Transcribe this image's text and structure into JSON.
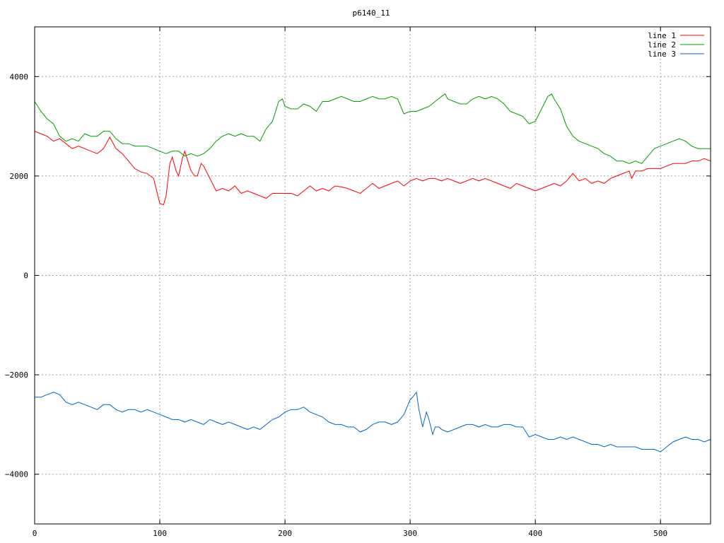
{
  "chart_data": {
    "type": "line",
    "title": "p6140_11",
    "xlabel": "",
    "ylabel": "",
    "xlim": [
      0,
      540
    ],
    "ylim": [
      -5000,
      5000
    ],
    "xticks": [
      0,
      100,
      200,
      300,
      400,
      500
    ],
    "yticks": [
      -4000,
      -2000,
      0,
      2000,
      4000
    ],
    "grid": true,
    "legend_position": "top-right",
    "series": [
      {
        "name": "line 1",
        "color": "#ff0000",
        "x": [
          0,
          5,
          10,
          15,
          20,
          25,
          30,
          35,
          40,
          45,
          50,
          55,
          60,
          65,
          70,
          75,
          80,
          85,
          90,
          95,
          98,
          100,
          103,
          105,
          108,
          110,
          113,
          115,
          118,
          120,
          123,
          125,
          128,
          130,
          133,
          135,
          138,
          140,
          143,
          145,
          150,
          155,
          160,
          165,
          170,
          175,
          180,
          185,
          190,
          195,
          200,
          205,
          210,
          215,
          220,
          225,
          230,
          235,
          240,
          245,
          250,
          255,
          260,
          265,
          270,
          275,
          280,
          285,
          290,
          295,
          300,
          305,
          310,
          315,
          320,
          325,
          330,
          335,
          340,
          345,
          350,
          355,
          360,
          365,
          370,
          375,
          380,
          385,
          390,
          395,
          400,
          405,
          410,
          415,
          420,
          425,
          430,
          435,
          440,
          445,
          450,
          455,
          460,
          465,
          470,
          475,
          477,
          480,
          485,
          490,
          495,
          500,
          505,
          510,
          515,
          520,
          525,
          530,
          535,
          540
        ],
        "y": [
          2900,
          2850,
          2800,
          2700,
          2750,
          2650,
          2550,
          2600,
          2550,
          2500,
          2450,
          2550,
          2780,
          2550,
          2450,
          2300,
          2150,
          2080,
          2050,
          1950,
          1650,
          1450,
          1420,
          1600,
          2250,
          2380,
          2100,
          2000,
          2350,
          2500,
          2250,
          2100,
          2000,
          2000,
          2250,
          2200,
          2050,
          1950,
          1800,
          1700,
          1750,
          1700,
          1800,
          1650,
          1700,
          1650,
          1600,
          1550,
          1650,
          1650,
          1650,
          1650,
          1600,
          1700,
          1800,
          1700,
          1750,
          1700,
          1800,
          1780,
          1750,
          1700,
          1650,
          1750,
          1850,
          1750,
          1800,
          1850,
          1900,
          1800,
          1900,
          1950,
          1900,
          1950,
          1950,
          1900,
          1950,
          1900,
          1850,
          1900,
          1950,
          1900,
          1950,
          1900,
          1850,
          1800,
          1750,
          1850,
          1800,
          1750,
          1700,
          1750,
          1800,
          1850,
          1800,
          1900,
          2050,
          1900,
          1950,
          1850,
          1900,
          1850,
          1950,
          2000,
          2050,
          2100,
          1950,
          2100,
          2100,
          2150,
          2150,
          2150,
          2200,
          2250,
          2250,
          2250,
          2300,
          2300,
          2350,
          2300
        ]
      },
      {
        "name": "line 2",
        "color": "#00a000",
        "x": [
          0,
          5,
          10,
          15,
          20,
          25,
          30,
          35,
          40,
          45,
          50,
          55,
          60,
          65,
          70,
          75,
          80,
          85,
          90,
          95,
          100,
          105,
          110,
          115,
          120,
          125,
          130,
          135,
          140,
          145,
          150,
          155,
          160,
          165,
          170,
          175,
          180,
          185,
          190,
          195,
          198,
          200,
          205,
          210,
          215,
          220,
          225,
          230,
          235,
          240,
          245,
          250,
          255,
          260,
          265,
          270,
          275,
          280,
          285,
          290,
          295,
          300,
          305,
          310,
          315,
          320,
          325,
          328,
          330,
          335,
          340,
          345,
          350,
          355,
          360,
          365,
          370,
          375,
          380,
          385,
          390,
          395,
          400,
          405,
          410,
          413,
          415,
          420,
          425,
          430,
          435,
          440,
          445,
          450,
          455,
          460,
          465,
          470,
          475,
          480,
          485,
          490,
          495,
          500,
          505,
          510,
          515,
          520,
          525,
          530,
          535,
          540
        ],
        "y": [
          3500,
          3300,
          3150,
          3050,
          2800,
          2700,
          2750,
          2700,
          2850,
          2800,
          2800,
          2900,
          2900,
          2750,
          2650,
          2650,
          2600,
          2600,
          2600,
          2550,
          2500,
          2450,
          2500,
          2500,
          2400,
          2450,
          2400,
          2450,
          2550,
          2700,
          2800,
          2850,
          2800,
          2850,
          2800,
          2800,
          2700,
          2950,
          3100,
          3500,
          3550,
          3400,
          3350,
          3350,
          3450,
          3400,
          3300,
          3500,
          3500,
          3550,
          3600,
          3550,
          3500,
          3500,
          3550,
          3600,
          3550,
          3550,
          3600,
          3550,
          3250,
          3300,
          3300,
          3350,
          3400,
          3500,
          3600,
          3650,
          3550,
          3500,
          3450,
          3450,
          3550,
          3600,
          3550,
          3600,
          3550,
          3450,
          3300,
          3250,
          3200,
          3050,
          3100,
          3350,
          3600,
          3650,
          3550,
          3350,
          3000,
          2800,
          2700,
          2650,
          2600,
          2550,
          2450,
          2400,
          2300,
          2300,
          2250,
          2300,
          2250,
          2400,
          2550,
          2600,
          2650,
          2700,
          2750,
          2700,
          2600,
          2550,
          2550,
          2550
        ]
      },
      {
        "name": "line 3",
        "color": "#0066cc",
        "x": [
          0,
          5,
          10,
          15,
          20,
          25,
          30,
          35,
          40,
          45,
          50,
          55,
          60,
          65,
          70,
          75,
          80,
          85,
          90,
          95,
          100,
          105,
          110,
          115,
          120,
          125,
          130,
          135,
          140,
          145,
          150,
          155,
          160,
          165,
          170,
          175,
          180,
          185,
          190,
          195,
          200,
          205,
          210,
          215,
          220,
          225,
          230,
          235,
          240,
          245,
          250,
          255,
          260,
          265,
          270,
          275,
          280,
          285,
          290,
          295,
          300,
          302,
          305,
          307,
          310,
          313,
          315,
          318,
          320,
          323,
          325,
          330,
          335,
          340,
          345,
          350,
          355,
          360,
          365,
          370,
          375,
          380,
          385,
          390,
          395,
          400,
          405,
          410,
          415,
          420,
          425,
          430,
          435,
          440,
          445,
          450,
          455,
          460,
          465,
          470,
          475,
          480,
          485,
          490,
          495,
          500,
          505,
          510,
          515,
          520,
          525,
          530,
          535,
          540
        ],
        "y": [
          -2450,
          -2450,
          -2400,
          -2350,
          -2400,
          -2550,
          -2600,
          -2550,
          -2600,
          -2650,
          -2700,
          -2600,
          -2600,
          -2700,
          -2750,
          -2700,
          -2700,
          -2750,
          -2700,
          -2750,
          -2800,
          -2850,
          -2900,
          -2900,
          -2950,
          -2900,
          -2950,
          -3000,
          -2900,
          -2950,
          -3000,
          -2950,
          -3000,
          -3050,
          -3100,
          -3050,
          -3100,
          -3000,
          -2900,
          -2850,
          -2750,
          -2700,
          -2700,
          -2650,
          -2750,
          -2800,
          -2850,
          -2950,
          -3000,
          -3000,
          -3050,
          -3050,
          -3150,
          -3100,
          -3000,
          -2950,
          -2950,
          -3000,
          -2950,
          -2800,
          -2500,
          -2450,
          -2350,
          -2700,
          -3050,
          -2750,
          -2900,
          -3200,
          -3050,
          -3050,
          -3100,
          -3150,
          -3100,
          -3050,
          -3000,
          -3000,
          -3050,
          -3000,
          -3050,
          -3050,
          -3000,
          -3000,
          -3050,
          -3050,
          -3250,
          -3200,
          -3250,
          -3300,
          -3300,
          -3250,
          -3300,
          -3250,
          -3300,
          -3350,
          -3400,
          -3400,
          -3450,
          -3400,
          -3450,
          -3450,
          -3450,
          -3450,
          -3500,
          -3500,
          -3500,
          -3550,
          -3450,
          -3350,
          -3300,
          -3250,
          -3300,
          -3300,
          -3350,
          -3300
        ]
      }
    ]
  }
}
